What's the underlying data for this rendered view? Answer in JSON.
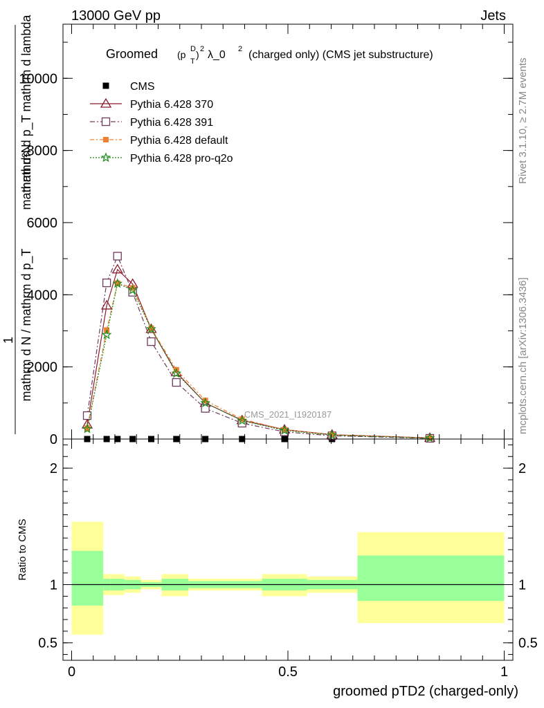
{
  "header": {
    "left": "13000 GeV pp",
    "right": "Jets"
  },
  "side_labels": {
    "rivet": "Rivet 3.1.10, ≥ 2.7M events",
    "mcplots": "mcplots.cern.ch [arXiv:1306.3436]"
  },
  "chart_data": [
    {
      "type": "line",
      "title_prefix": "Groomed",
      "title_sup_d": "D",
      "title_sub_t": "T",
      "title_exp": "2",
      "title_lambda": "λ_0",
      "title_lambda_exp": "2",
      "title_rest": "(charged only) (CMS jet substructure)",
      "watermark": "CMS_2021_I1920187",
      "ylabel_numerator": "1",
      "ylabel_denominator": "mathrm d N / mathrm d p_T",
      "ylabel_top_a": "mathrm d²N",
      "ylabel_top_b": "mathrm d p_T mathrm d lambda",
      "ylim": [
        0,
        11500
      ],
      "xlim": [
        -0.02,
        1.02
      ],
      "y_ticks": [
        0,
        2000,
        4000,
        6000,
        8000,
        10000
      ],
      "y_tick_labels": [
        "0",
        "2000",
        "4000",
        "6000",
        "8000",
        "10000"
      ],
      "x": [
        0.036,
        0.081,
        0.106,
        0.141,
        0.184,
        0.242,
        0.309,
        0.394,
        0.492,
        0.602,
        0.828
      ],
      "legend_position": "top-left",
      "series": [
        {
          "name": "CMS",
          "color": "#000000",
          "marker": "square",
          "values": [
            0,
            0,
            0,
            0,
            0,
            0,
            0,
            0,
            0,
            0,
            0
          ]
        },
        {
          "name": "Pythia 6.428 370",
          "color": "#8b1a2a",
          "marker": "triangle-open",
          "dash": "",
          "values": [
            400,
            3700,
            4700,
            4300,
            3050,
            1850,
            1000,
            520,
            260,
            120,
            30
          ]
        },
        {
          "name": "Pythia 6.428 391",
          "color": "#6e3a5a",
          "marker": "square-open",
          "dash": "7,3,2,3",
          "values": [
            650,
            4330,
            5070,
            4070,
            2700,
            1570,
            850,
            440,
            200,
            90,
            20
          ]
        },
        {
          "name": "Pythia 6.428 default",
          "color": "#f08030",
          "marker": "square-filled",
          "dash": "6,3,2,3",
          "values": [
            300,
            3020,
            4320,
            4190,
            3070,
            1920,
            1070,
            550,
            260,
            120,
            30
          ]
        },
        {
          "name": "Pythia 6.428 pro-q2o",
          "color": "#1a8a1a",
          "marker": "star",
          "dash": "2,2",
          "values": [
            280,
            2890,
            4310,
            4130,
            3050,
            1820,
            1000,
            510,
            240,
            110,
            25
          ]
        }
      ]
    },
    {
      "type": "area",
      "ylabel": "Ratio to CMS",
      "xlabel": "groomed pTD2 (charged-only)",
      "ylim": [
        0.35,
        2.25
      ],
      "y_ticks": [
        0.5,
        1,
        2
      ],
      "y_tick_labels": [
        "0.5",
        "1",
        "2"
      ],
      "x_ticks": [
        0,
        0.5,
        1
      ],
      "x_tick_labels": [
        "0",
        "0.5",
        "1"
      ],
      "bins": [
        0,
        0.073,
        0.09,
        0.122,
        0.16,
        0.208,
        0.27,
        0.352,
        0.44,
        0.544,
        0.661,
        1.0
      ],
      "inner_band": [
        [
          0.82,
          1.29
        ],
        [
          0.95,
          1.05
        ],
        [
          0.95,
          1.05
        ],
        [
          0.96,
          1.04
        ],
        [
          0.98,
          1.02
        ],
        [
          0.95,
          1.05
        ],
        [
          0.97,
          1.03
        ],
        [
          0.97,
          1.03
        ],
        [
          0.95,
          1.05
        ],
        [
          0.96,
          1.04
        ],
        [
          0.86,
          1.25
        ]
      ],
      "outer_band": [
        [
          0.57,
          1.54
        ],
        [
          0.91,
          1.09
        ],
        [
          0.91,
          1.09
        ],
        [
          0.93,
          1.07
        ],
        [
          0.96,
          1.04
        ],
        [
          0.9,
          1.09
        ],
        [
          0.95,
          1.05
        ],
        [
          0.95,
          1.05
        ],
        [
          0.9,
          1.09
        ],
        [
          0.93,
          1.07
        ],
        [
          0.67,
          1.45
        ]
      ],
      "inner_color": "#99ff99",
      "outer_color": "#ffff99"
    }
  ]
}
